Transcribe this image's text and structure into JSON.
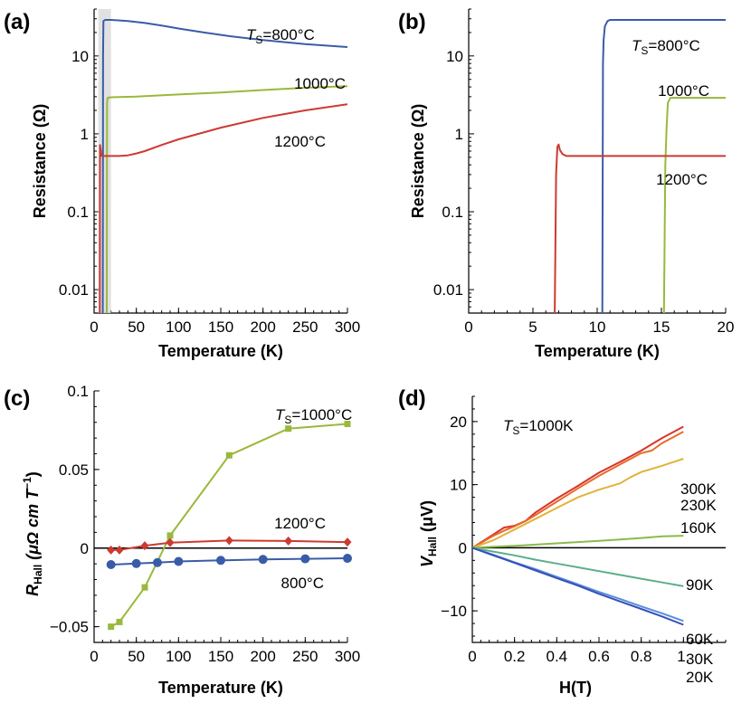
{
  "colors": {
    "blue": "#3a5ca8",
    "green": "#9ab83c",
    "red": "#cc3a32",
    "shade": "#dcdcdc",
    "red300": "#d8342c",
    "orange230": "#e86a2a",
    "yellow160": "#e2b23a",
    "green90": "#8cba4c",
    "teal60": "#5cae8a",
    "blue30": "#5a8ed8",
    "blue20": "#3550b8"
  },
  "chart_data": [
    {
      "panel": "(a)",
      "type": "line",
      "xlabel": "Temperature (K)",
      "ylabel": "Resistance (Ω)",
      "xlim": [
        0,
        300
      ],
      "ylim": [
        0.005,
        40
      ],
      "yscale": "log",
      "xticks": [
        0,
        50,
        100,
        150,
        200,
        250,
        300
      ],
      "xtick_labels": [
        "0",
        "50",
        "100",
        "150",
        "200",
        "250",
        "300"
      ],
      "yticks": [
        0.01,
        0.1,
        1,
        10
      ],
      "ytick_labels": [
        "0.01",
        "0.1",
        "1",
        "10"
      ],
      "shaded_x": [
        5,
        20
      ],
      "series": [
        {
          "name": "800°C",
          "color_key": "blue",
          "label": "=800°C",
          "label_prefix": "T",
          "label_sub": "S",
          "x": [
            10.3,
            10.6,
            11,
            13,
            20,
            40,
            60,
            80,
            100,
            130,
            160,
            200,
            250,
            300
          ],
          "y": [
            0.005,
            10,
            28,
            29,
            29,
            28,
            26.5,
            24.5,
            22.5,
            20,
            18,
            16,
            14.2,
            13
          ]
        },
        {
          "name": "1000°C",
          "color_key": "green",
          "label": "1000°C",
          "x": [
            15,
            15.3,
            16,
            20,
            50,
            100,
            150,
            200,
            250,
            300
          ],
          "y": [
            0.005,
            2.5,
            2.9,
            2.95,
            3.0,
            3.2,
            3.4,
            3.65,
            3.9,
            4.1
          ]
        },
        {
          "name": "1200°C",
          "color_key": "red",
          "label": "1200°C",
          "x": [
            6.8,
            7,
            8,
            9,
            12,
            20,
            30,
            40,
            50,
            60,
            80,
            100,
            150,
            200,
            250,
            300
          ],
          "y": [
            0.005,
            0.72,
            0.6,
            0.52,
            0.52,
            0.52,
            0.52,
            0.53,
            0.56,
            0.6,
            0.72,
            0.85,
            1.2,
            1.6,
            2.0,
            2.4
          ]
        }
      ]
    },
    {
      "panel": "(b)",
      "type": "line",
      "xlabel": "Temperature (K)",
      "ylabel": "Resistance (Ω)",
      "xlim": [
        0,
        20
      ],
      "ylim": [
        0.005,
        40
      ],
      "yscale": "log",
      "xticks": [
        0,
        5,
        10,
        15,
        20
      ],
      "xtick_labels": [
        "0",
        "5",
        "10",
        "15",
        "20"
      ],
      "yticks": [
        0.01,
        0.1,
        1,
        10
      ],
      "ytick_labels": [
        "0.01",
        "0.1",
        "1",
        "10"
      ],
      "series": [
        {
          "name": "800°C",
          "color_key": "blue",
          "label": "=800°C",
          "label_prefix": "T",
          "label_sub": "S",
          "x": [
            10.4,
            10.45,
            10.5,
            10.6,
            10.8,
            11,
            12,
            14,
            16,
            18,
            20
          ],
          "y": [
            0.005,
            8,
            16,
            24,
            28,
            29,
            29,
            29,
            29,
            29,
            29
          ]
        },
        {
          "name": "1000°C",
          "color_key": "green",
          "label": "1000°C",
          "x": [
            15.2,
            15.3,
            15.4,
            15.5,
            15.7,
            16,
            17,
            18,
            19,
            20
          ],
          "y": [
            0.005,
            0.4,
            1.2,
            2.5,
            2.9,
            2.9,
            2.9,
            2.9,
            2.9,
            2.9
          ]
        },
        {
          "name": "1200°C",
          "color_key": "red",
          "label": "1200°C",
          "x": [
            6.7,
            6.8,
            6.9,
            7.0,
            7.1,
            7.3,
            7.6,
            8,
            10,
            12,
            14,
            16,
            18,
            20
          ],
          "y": [
            0.005,
            0.3,
            0.68,
            0.73,
            0.62,
            0.55,
            0.52,
            0.52,
            0.52,
            0.52,
            0.52,
            0.52,
            0.52,
            0.52
          ]
        }
      ]
    },
    {
      "panel": "(c)",
      "type": "line",
      "xlabel": "Temperature (K)",
      "ylabel_main": "R",
      "ylabel_sub": "Hall",
      "ylabel_rest": " (μΩ cm T",
      "ylabel_sup": "−1",
      "ylabel_end": ")",
      "xlim": [
        0,
        300
      ],
      "ylim": [
        -0.06,
        0.1
      ],
      "xticks": [
        0,
        50,
        100,
        150,
        200,
        250,
        300
      ],
      "xtick_labels": [
        "0",
        "50",
        "100",
        "150",
        "200",
        "250",
        "300"
      ],
      "yticks": [
        -0.05,
        0,
        0.05,
        0.1
      ],
      "ytick_labels": [
        "−0.05",
        "0",
        "0.05",
        "0.1"
      ],
      "zero_line": true,
      "series": [
        {
          "name": "1000°C",
          "color_key": "green",
          "marker": "square",
          "label": "=1000°C",
          "label_prefix": "T",
          "label_sub": "S",
          "x": [
            20,
            30,
            60,
            90,
            160,
            230,
            300
          ],
          "y": [
            -0.05,
            -0.047,
            -0.025,
            0.008,
            0.059,
            0.076,
            0.079
          ]
        },
        {
          "name": "1200°C",
          "color_key": "red",
          "marker": "diamond",
          "label": "1200°C",
          "x": [
            20,
            30,
            60,
            90,
            160,
            230,
            300
          ],
          "y": [
            -0.0012,
            -0.0012,
            0.0015,
            0.0035,
            0.0048,
            0.0045,
            0.0038
          ]
        },
        {
          "name": "800°C",
          "color_key": "blue",
          "marker": "circle",
          "label": "800°C",
          "x": [
            20,
            50,
            75,
            100,
            150,
            200,
            250,
            300
          ],
          "y": [
            -0.0105,
            -0.0098,
            -0.0092,
            -0.0085,
            -0.0078,
            -0.0072,
            -0.0068,
            -0.0065
          ]
        }
      ]
    },
    {
      "panel": "(d)",
      "type": "line",
      "xlabel": "H(T)",
      "ylabel_main": "V",
      "ylabel_sub": "Hall",
      "ylabel_rest": " (μV)",
      "xlim": [
        0,
        1.2
      ],
      "ylim": [
        -15,
        24
      ],
      "xticks": [
        0,
        0.2,
        0.4,
        0.6,
        0.8,
        1.0
      ],
      "xtick_labels": [
        "0",
        "0.2",
        "0.4",
        "0.6",
        "0.8",
        "1."
      ],
      "yticks": [
        -10,
        0,
        10,
        20
      ],
      "ytick_labels": [
        "−10",
        "0",
        "10",
        "20"
      ],
      "zero_line": true,
      "annotation": {
        "prefix": "T",
        "sub": "S",
        "text": "=1000K"
      },
      "series": [
        {
          "name": "300K",
          "color_key": "red300",
          "label": "300K",
          "x": [
            0,
            0.1,
            0.15,
            0.2,
            0.25,
            0.3,
            0.4,
            0.5,
            0.6,
            0.7,
            0.8,
            0.9,
            1.0
          ],
          "y": [
            0,
            2.1,
            3.2,
            3.5,
            4.2,
            5.6,
            7.8,
            9.8,
            11.9,
            13.6,
            15.4,
            17.4,
            19.2
          ]
        },
        {
          "name": "230K",
          "color_key": "orange230",
          "label": "230K",
          "x": [
            0,
            0.1,
            0.15,
            0.2,
            0.25,
            0.3,
            0.4,
            0.5,
            0.6,
            0.7,
            0.8,
            0.85,
            0.9,
            1.0
          ],
          "y": [
            0,
            1.9,
            2.7,
            3.4,
            4.2,
            5.2,
            7.3,
            9.4,
            11.4,
            13.2,
            15.0,
            15.4,
            16.6,
            18.4
          ]
        },
        {
          "name": "160K",
          "color_key": "yellow160",
          "label": "160K",
          "x": [
            0,
            0.1,
            0.2,
            0.3,
            0.4,
            0.5,
            0.6,
            0.7,
            0.75,
            0.8,
            0.9,
            1.0
          ],
          "y": [
            0,
            1.2,
            2.9,
            4.6,
            6.3,
            8.0,
            9.2,
            10.2,
            11.2,
            12.0,
            13.0,
            14.1
          ]
        },
        {
          "name": "90K",
          "color_key": "green90",
          "label": "90K",
          "x": [
            0,
            0.1,
            0.2,
            0.3,
            0.4,
            0.5,
            0.6,
            0.7,
            0.8,
            0.9,
            1.0
          ],
          "y": [
            0,
            0.15,
            0.3,
            0.5,
            0.7,
            0.9,
            1.1,
            1.3,
            1.55,
            1.8,
            1.9
          ]
        },
        {
          "name": "60K",
          "color_key": "teal60",
          "label": "60K",
          "x": [
            0,
            0.1,
            0.2,
            0.3,
            0.4,
            0.5,
            0.6,
            0.7,
            0.8,
            0.9,
            1.0
          ],
          "y": [
            0,
            -0.6,
            -1.2,
            -1.9,
            -2.5,
            -3.1,
            -3.7,
            -4.3,
            -4.9,
            -5.5,
            -6.1
          ]
        },
        {
          "name": "30K",
          "color_key": "blue30",
          "label": "30K",
          "x": [
            0,
            0.1,
            0.2,
            0.3,
            0.4,
            0.5,
            0.6,
            0.7,
            0.8,
            0.9,
            1.0
          ],
          "y": [
            0,
            -1.1,
            -2.3,
            -3.4,
            -4.6,
            -5.8,
            -7.0,
            -8.1,
            -9.3,
            -10.4,
            -11.6
          ]
        },
        {
          "name": "20K",
          "color_key": "blue20",
          "label": "20K",
          "x": [
            0,
            0.1,
            0.2,
            0.3,
            0.4,
            0.5,
            0.6,
            0.7,
            0.8,
            0.9,
            1.0
          ],
          "y": [
            0,
            -1.2,
            -2.4,
            -3.6,
            -4.8,
            -6.0,
            -7.3,
            -8.5,
            -9.7,
            -10.9,
            -12.2
          ]
        }
      ]
    }
  ]
}
